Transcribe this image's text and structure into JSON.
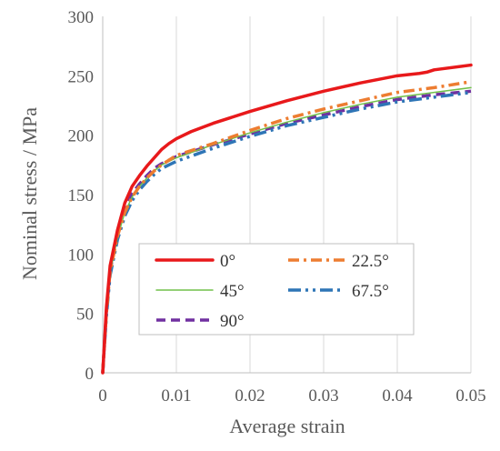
{
  "chart_data": {
    "type": "line",
    "title": "",
    "xlabel": "Average strain",
    "ylabel": "Nominal stress / MPa",
    "xlim": [
      0,
      0.05
    ],
    "ylim": [
      0,
      300
    ],
    "x_ticks": [
      0,
      0.01,
      0.02,
      0.03,
      0.04,
      0.05
    ],
    "x_tick_labels": [
      "0",
      "0.01",
      "0.02",
      "0.03",
      "0.04",
      "0.05"
    ],
    "y_ticks": [
      0,
      50,
      100,
      150,
      200,
      250,
      300
    ],
    "y_tick_labels": [
      "0",
      "50",
      "100",
      "150",
      "200",
      "250",
      "300"
    ],
    "grid": "vertical",
    "legend_placement": "center",
    "series": [
      {
        "name": "0°",
        "color": "#e8191b",
        "style": "solid-thick",
        "points": [
          [
            0,
            0
          ],
          [
            0.0005,
            55
          ],
          [
            0.001,
            90
          ],
          [
            0.002,
            120
          ],
          [
            0.003,
            143
          ],
          [
            0.004,
            157
          ],
          [
            0.005,
            166
          ],
          [
            0.006,
            174
          ],
          [
            0.007,
            181
          ],
          [
            0.008,
            188
          ],
          [
            0.009,
            193
          ],
          [
            0.01,
            197
          ],
          [
            0.012,
            203
          ],
          [
            0.015,
            210
          ],
          [
            0.02,
            220
          ],
          [
            0.025,
            229
          ],
          [
            0.03,
            237
          ],
          [
            0.035,
            244
          ],
          [
            0.04,
            250
          ],
          [
            0.043,
            252
          ],
          [
            0.044,
            253
          ],
          [
            0.045,
            255
          ],
          [
            0.05,
            259
          ]
        ]
      },
      {
        "name": "22.5°",
        "color": "#ed7d31",
        "style": "dash-dot",
        "points": [
          [
            0,
            0
          ],
          [
            0.0005,
            50
          ],
          [
            0.001,
            85
          ],
          [
            0.002,
            115
          ],
          [
            0.003,
            135
          ],
          [
            0.004,
            148
          ],
          [
            0.005,
            157
          ],
          [
            0.006,
            164
          ],
          [
            0.007,
            170
          ],
          [
            0.008,
            175
          ],
          [
            0.009,
            179
          ],
          [
            0.01,
            183
          ],
          [
            0.015,
            193
          ],
          [
            0.02,
            204
          ],
          [
            0.025,
            214
          ],
          [
            0.03,
            222
          ],
          [
            0.035,
            229
          ],
          [
            0.04,
            236
          ],
          [
            0.045,
            240
          ],
          [
            0.05,
            245
          ]
        ]
      },
      {
        "name": "45°",
        "color": "#70c04a",
        "style": "solid-thin",
        "points": [
          [
            0,
            0
          ],
          [
            0.0005,
            50
          ],
          [
            0.001,
            84
          ],
          [
            0.002,
            114
          ],
          [
            0.003,
            135
          ],
          [
            0.004,
            148
          ],
          [
            0.005,
            157
          ],
          [
            0.006,
            164
          ],
          [
            0.007,
            170
          ],
          [
            0.008,
            175
          ],
          [
            0.009,
            178
          ],
          [
            0.01,
            181
          ],
          [
            0.015,
            192
          ],
          [
            0.02,
            202
          ],
          [
            0.025,
            211
          ],
          [
            0.03,
            219
          ],
          [
            0.035,
            226
          ],
          [
            0.04,
            232
          ],
          [
            0.045,
            236
          ],
          [
            0.05,
            240
          ]
        ]
      },
      {
        "name": "67.5°",
        "color": "#2e75b6",
        "style": "dash-dot-dot",
        "points": [
          [
            0,
            0
          ],
          [
            0.0005,
            48
          ],
          [
            0.001,
            82
          ],
          [
            0.002,
            112
          ],
          [
            0.003,
            132
          ],
          [
            0.004,
            145
          ],
          [
            0.005,
            154
          ],
          [
            0.006,
            161
          ],
          [
            0.007,
            167
          ],
          [
            0.008,
            172
          ],
          [
            0.009,
            175
          ],
          [
            0.01,
            178
          ],
          [
            0.015,
            189
          ],
          [
            0.02,
            199
          ],
          [
            0.025,
            208
          ],
          [
            0.03,
            215
          ],
          [
            0.035,
            222
          ],
          [
            0.04,
            228
          ],
          [
            0.045,
            232
          ],
          [
            0.05,
            236
          ]
        ]
      },
      {
        "name": "90°",
        "color": "#7030a0",
        "style": "dashed",
        "points": [
          [
            0,
            0
          ],
          [
            0.0005,
            52
          ],
          [
            0.001,
            86
          ],
          [
            0.002,
            118
          ],
          [
            0.003,
            138
          ],
          [
            0.004,
            151
          ],
          [
            0.005,
            159
          ],
          [
            0.006,
            166
          ],
          [
            0.007,
            172
          ],
          [
            0.008,
            176
          ],
          [
            0.009,
            179
          ],
          [
            0.01,
            182
          ],
          [
            0.015,
            192
          ],
          [
            0.02,
            201
          ],
          [
            0.025,
            210
          ],
          [
            0.03,
            217
          ],
          [
            0.035,
            224
          ],
          [
            0.04,
            230
          ],
          [
            0.045,
            234
          ],
          [
            0.05,
            237
          ]
        ]
      }
    ]
  }
}
